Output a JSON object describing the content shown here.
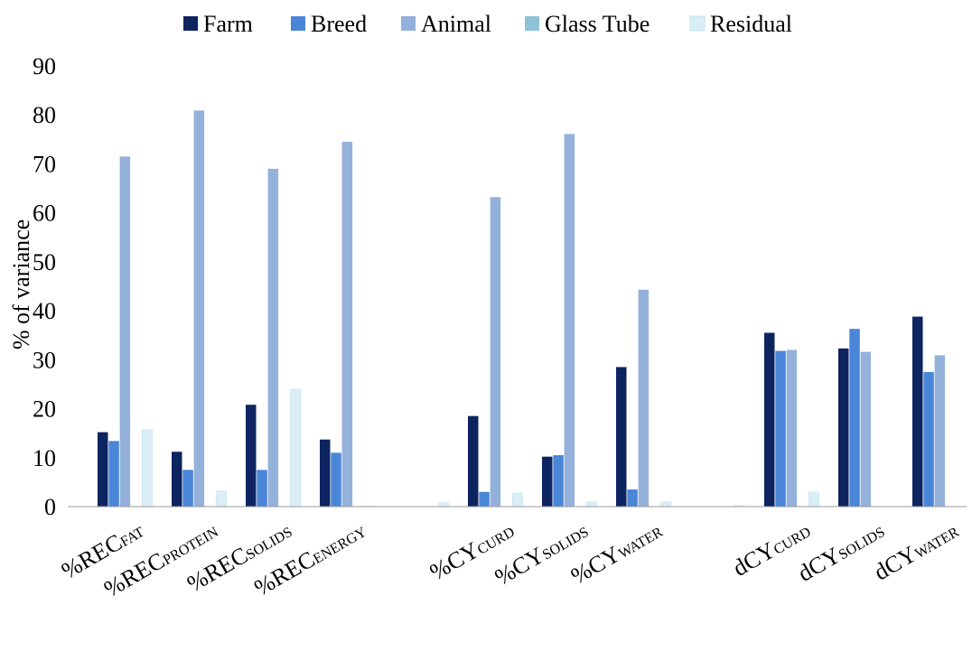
{
  "chart_data": {
    "type": "bar",
    "y_label": "% of variance",
    "categories": [
      {
        "main": "%REC",
        "sub": "FAT"
      },
      {
        "main": "%REC",
        "sub": "PROTEIN"
      },
      {
        "main": "%REC",
        "sub": "SOLIDS"
      },
      {
        "main": "%REC",
        "sub": "ENERGY"
      },
      null,
      {
        "main": "%CY",
        "sub": "CURD"
      },
      {
        "main": "%CY",
        "sub": "SOLIDS"
      },
      {
        "main": "%CY",
        "sub": "WATER"
      },
      null,
      {
        "main": "dCY",
        "sub": "CURD"
      },
      {
        "main": "dCY",
        "sub": "SOLIDS"
      },
      {
        "main": "dCY",
        "sub": "WATER"
      }
    ],
    "series": [
      {
        "name": "Farm",
        "color": "#0d2461",
        "values": [
          15.2,
          11.2,
          20.8,
          13.7,
          null,
          18.5,
          10.2,
          28.5,
          null,
          35.5,
          32.3,
          38.8
        ]
      },
      {
        "name": "Breed",
        "color": "#4a86d8",
        "values": [
          13.4,
          7.5,
          7.5,
          11.0,
          null,
          3.0,
          10.5,
          3.5,
          null,
          31.8,
          36.3,
          27.5
        ]
      },
      {
        "name": "Animal",
        "color": "#93b1db",
        "values": [
          71.5,
          80.9,
          69.0,
          74.5,
          null,
          63.2,
          76.1,
          44.3,
          null,
          32.0,
          31.6,
          30.9
        ]
      },
      {
        "name": "Glass Tube",
        "color": "#8fc2d6",
        "values": [
          0,
          0,
          0,
          0.1,
          null,
          0,
          0,
          0,
          null,
          0,
          0,
          0
        ]
      },
      {
        "name": "Residual",
        "color": "#d9eef5",
        "values": [
          15.7,
          3.2,
          24.0,
          0.1,
          0.8,
          2.8,
          1.0,
          1.0,
          0.2,
          3.0,
          0,
          0
        ]
      }
    ],
    "ylim": [
      0,
      90
    ],
    "yticks": [
      0,
      10,
      20,
      30,
      40,
      50,
      60,
      70,
      80,
      90
    ],
    "grid": false,
    "legend": "top"
  }
}
